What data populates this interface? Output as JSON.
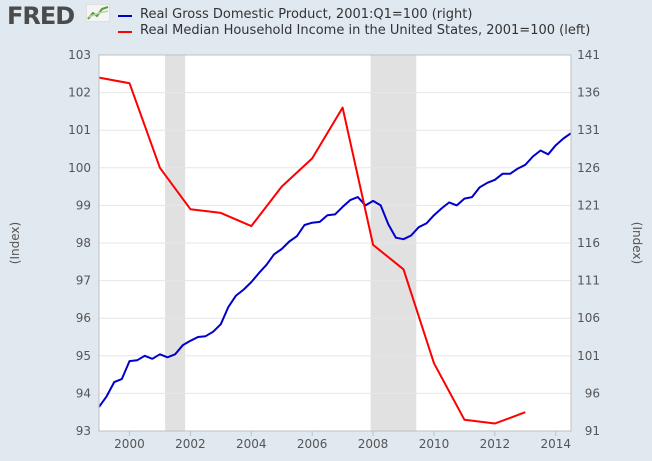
{
  "brand": "FRED",
  "chart_data": {
    "type": "line",
    "title": "",
    "x_range": [
      1999.0,
      2014.5
    ],
    "x_ticks": [
      2000,
      2002,
      2004,
      2006,
      2008,
      2010,
      2012,
      2014
    ],
    "left_axis": {
      "label": "(Index)",
      "range": [
        93,
        103
      ],
      "ticks": [
        93,
        94,
        95,
        96,
        97,
        98,
        99,
        100,
        101,
        102,
        103
      ]
    },
    "right_axis": {
      "label": "(Index)",
      "range": [
        91,
        141
      ],
      "ticks": [
        91,
        96,
        101,
        106,
        111,
        116,
        121,
        126,
        131,
        136,
        141
      ]
    },
    "recessions": [
      [
        2001.17,
        2001.83
      ],
      [
        2007.92,
        2009.42
      ]
    ],
    "series": [
      {
        "name": "Real Gross Domestic Product, 2001:Q1=100 (right)",
        "axis": "right",
        "color": "#0000cc",
        "x": [
          1999.0,
          1999.25,
          1999.5,
          1999.75,
          2000.0,
          2000.25,
          2000.5,
          2000.75,
          2001.0,
          2001.25,
          2001.5,
          2001.75,
          2002.0,
          2002.25,
          2002.5,
          2002.75,
          2003.0,
          2003.25,
          2003.5,
          2003.75,
          2004.0,
          2004.25,
          2004.5,
          2004.75,
          2005.0,
          2005.25,
          2005.5,
          2005.75,
          2006.0,
          2006.25,
          2006.5,
          2006.75,
          2007.0,
          2007.25,
          2007.5,
          2007.75,
          2008.0,
          2008.25,
          2008.5,
          2008.75,
          2009.0,
          2009.25,
          2009.5,
          2009.75,
          2010.0,
          2010.25,
          2010.5,
          2010.75,
          2011.0,
          2011.25,
          2011.5,
          2011.75,
          2012.0,
          2012.25,
          2012.5,
          2012.75,
          2013.0,
          2013.25,
          2013.5,
          2013.75,
          2014.0,
          2014.25,
          2014.5
        ],
        "values": [
          94.2,
          95.6,
          97.5,
          97.9,
          100.3,
          100.4,
          101.0,
          100.6,
          101.2,
          100.8,
          101.2,
          102.4,
          103.0,
          103.5,
          103.6,
          104.2,
          105.2,
          107.5,
          109.0,
          109.8,
          110.8,
          112.0,
          113.1,
          114.5,
          115.2,
          116.2,
          116.9,
          118.4,
          118.7,
          118.8,
          119.7,
          119.8,
          120.8,
          121.7,
          122.1,
          121.0,
          121.6,
          121.0,
          118.5,
          116.7,
          116.5,
          117.0,
          118.1,
          118.6,
          119.7,
          120.6,
          121.4,
          121.0,
          121.9,
          122.1,
          123.4,
          124.0,
          124.4,
          125.2,
          125.2,
          125.9,
          126.4,
          127.5,
          128.3,
          127.8,
          129.0,
          129.9,
          130.6
        ]
      },
      {
        "name": "Real Median Household Income in the United States, 2001=100 (left)",
        "axis": "left",
        "color": "#ff0000",
        "x": [
          1999.0,
          2000.0,
          2001.0,
          2002.0,
          2003.0,
          2004.0,
          2005.0,
          2006.0,
          2007.0,
          2008.0,
          2009.0,
          2010.0,
          2011.0,
          2012.0,
          2013.0
        ],
        "values": [
          102.4,
          102.25,
          100.0,
          98.9,
          98.8,
          98.45,
          99.5,
          100.25,
          101.6,
          97.95,
          97.3,
          94.8,
          93.3,
          93.2,
          93.5
        ]
      }
    ]
  }
}
